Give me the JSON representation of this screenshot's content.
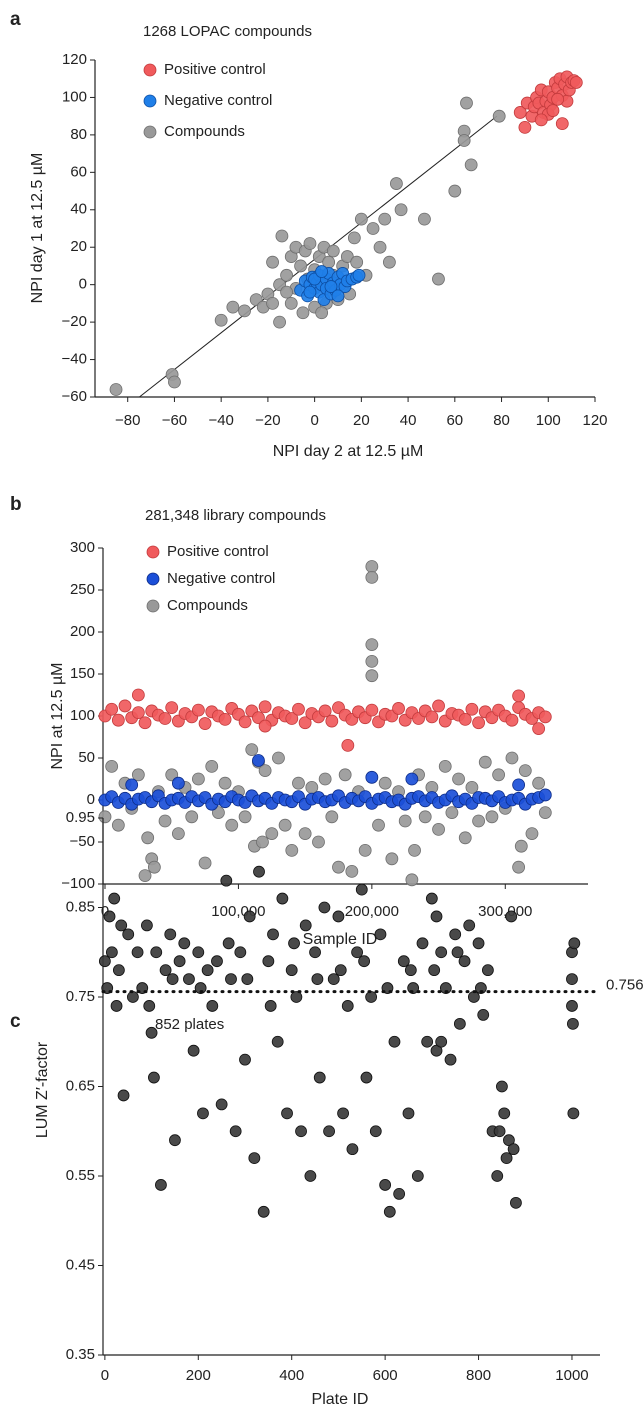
{
  "chart_data": [
    {
      "type": "scatter",
      "panel_label": "a",
      "title": "1268 LOPAC compounds",
      "xlabel": "NPI day 2 at 12.5 µM",
      "ylabel": "NPI day 1 at 12.5 µM",
      "xlim": [
        -94,
        120
      ],
      "ylim": [
        -60,
        120
      ],
      "xticks": [
        {
          "value": -80,
          "label": "−80"
        },
        {
          "value": -60,
          "label": "−60"
        },
        {
          "value": -40,
          "label": "−40"
        },
        {
          "value": -20,
          "label": "−20"
        },
        0,
        20,
        40,
        60,
        80,
        100,
        120
      ],
      "yticks": [
        {
          "value": -60,
          "label": "−60"
        },
        {
          "value": -40,
          "label": "−40"
        },
        {
          "value": -20,
          "label": "−20"
        },
        0,
        20,
        40,
        60,
        80,
        100,
        120
      ],
      "fit_line": {
        "x": [
          -75,
          78
        ],
        "y": [
          -60,
          90
        ]
      },
      "series": [
        {
          "name": "Positive control",
          "color": "#f05a5c",
          "x": [
            88,
            90,
            91,
            93,
            94,
            95,
            96,
            97,
            98,
            99,
            100,
            101,
            102,
            103,
            104,
            105,
            106,
            106,
            107,
            108,
            108,
            109,
            110,
            111,
            112,
            104,
            100,
            97,
            102
          ],
          "values": [
            92,
            84,
            97,
            90,
            95,
            100,
            97,
            104,
            92,
            98,
            103,
            96,
            100,
            108,
            105,
            110,
            86,
            101,
            107,
            111,
            98,
            104,
            108,
            109,
            108,
            99,
            91,
            88,
            93
          ]
        },
        {
          "name": "Negative control",
          "color": "#1f7fe8",
          "x": [
            -6,
            -4,
            -3,
            -2,
            -1,
            0,
            1,
            2,
            2,
            3,
            4,
            5,
            5,
            6,
            7,
            8,
            9,
            10,
            11,
            12,
            13,
            14,
            16,
            18,
            19,
            0,
            -2,
            3,
            7,
            10
          ],
          "values": [
            -3,
            2,
            -6,
            0,
            4,
            -2,
            1,
            5,
            -4,
            0,
            -8,
            3,
            -2,
            6,
            -5,
            1,
            -3,
            4,
            0,
            6,
            -1,
            2,
            3,
            4,
            5,
            3,
            -4,
            7,
            -1,
            -6
          ]
        },
        {
          "name": "Compounds",
          "color": "#999999",
          "x": [
            -85,
            -61,
            -60,
            -40,
            -35,
            -30,
            -25,
            -22,
            -20,
            -18,
            -15,
            -15,
            -14,
            -12,
            -10,
            -10,
            -8,
            -6,
            -5,
            -4,
            -2,
            0,
            0,
            2,
            4,
            5,
            6,
            8,
            10,
            12,
            14,
            15,
            18,
            20,
            22,
            25,
            28,
            30,
            32,
            35,
            37,
            47,
            53,
            60,
            64,
            64,
            65,
            67,
            79,
            17,
            -8,
            -12,
            3,
            8,
            -18,
            -3,
            6
          ],
          "values": [
            -56,
            -48,
            -52,
            -19,
            -12,
            -14,
            -8,
            -12,
            -5,
            -10,
            -20,
            0,
            26,
            5,
            -10,
            15,
            20,
            10,
            -15,
            18,
            22,
            8,
            -12,
            15,
            20,
            -10,
            12,
            18,
            -8,
            10,
            15,
            -5,
            12,
            35,
            5,
            30,
            20,
            35,
            12,
            54,
            40,
            35,
            3,
            50,
            82,
            77,
            97,
            64,
            90,
            25,
            -2,
            -4,
            -15,
            5,
            12,
            3,
            -3
          ]
        }
      ]
    },
    {
      "type": "scatter",
      "panel_label": "b",
      "title": "281,348 library compounds",
      "xlabel": "Sample ID",
      "ylabel": "NPI at 12.5 µM",
      "xlim": [
        -1500,
        362000
      ],
      "ylim": [
        -100,
        300
      ],
      "xticks": [
        0,
        {
          "value": 100000,
          "label": "100,000"
        },
        {
          "value": 200000,
          "label": "200,000"
        },
        {
          "value": 300000,
          "label": "300,000"
        }
      ],
      "yticks": [
        {
          "value": -100,
          "label": "−100"
        },
        {
          "value": -50,
          "label": "−50"
        },
        0,
        50,
        100,
        150,
        200,
        250,
        300
      ],
      "series": [
        {
          "name": "Positive control",
          "color": "#f05a5c",
          "x": [
            0,
            5000,
            10000,
            15000,
            20000,
            25000,
            30000,
            35000,
            40000,
            45000,
            50000,
            55000,
            60000,
            65000,
            70000,
            75000,
            80000,
            85000,
            90000,
            95000,
            100000,
            105000,
            110000,
            115000,
            120000,
            125000,
            130000,
            135000,
            140000,
            145000,
            150000,
            155000,
            160000,
            165000,
            170000,
            175000,
            180000,
            185000,
            190000,
            195000,
            200000,
            205000,
            210000,
            215000,
            220000,
            225000,
            230000,
            235000,
            240000,
            245000,
            250000,
            255000,
            260000,
            265000,
            270000,
            275000,
            280000,
            285000,
            290000,
            295000,
            300000,
            305000,
            310000,
            315000,
            320000,
            325000,
            330000,
            25000,
            310000,
            182000,
            325000,
            120000
          ],
          "values": [
            100,
            108,
            95,
            112,
            98,
            104,
            92,
            106,
            101,
            97,
            110,
            94,
            103,
            99,
            107,
            91,
            105,
            100,
            96,
            109,
            102,
            93,
            106,
            98,
            111,
            95,
            104,
            100,
            97,
            108,
            92,
            103,
            99,
            106,
            94,
            110,
            101,
            96,
            105,
            98,
            107,
            93,
            102,
            100,
            109,
            95,
            104,
            97,
            106,
            99,
            112,
            94,
            103,
            101,
            96,
            108,
            92,
            105,
            98,
            107,
            100,
            95,
            110,
            102,
            97,
            104,
            99,
            125,
            124,
            65,
            85,
            88
          ]
        },
        {
          "name": "Negative control",
          "color": "#1b4fd8",
          "x": [
            0,
            5000,
            10000,
            15000,
            20000,
            25000,
            30000,
            35000,
            40000,
            45000,
            50000,
            55000,
            60000,
            65000,
            70000,
            75000,
            80000,
            85000,
            90000,
            95000,
            100000,
            105000,
            110000,
            115000,
            120000,
            125000,
            130000,
            135000,
            140000,
            145000,
            150000,
            155000,
            160000,
            165000,
            170000,
            175000,
            180000,
            185000,
            190000,
            195000,
            200000,
            205000,
            210000,
            215000,
            220000,
            225000,
            230000,
            235000,
            240000,
            245000,
            250000,
            255000,
            260000,
            265000,
            270000,
            275000,
            280000,
            285000,
            290000,
            295000,
            300000,
            305000,
            310000,
            315000,
            320000,
            325000,
            330000,
            20000,
            55000,
            115000,
            200000,
            230000,
            310000
          ],
          "values": [
            0,
            4,
            -3,
            2,
            -5,
            1,
            3,
            -2,
            5,
            -4,
            0,
            2,
            -3,
            4,
            -1,
            3,
            -5,
            1,
            -2,
            4,
            0,
            -3,
            5,
            -1,
            2,
            -4,
            3,
            0,
            -2,
            4,
            -5,
            1,
            3,
            -2,
            0,
            5,
            -3,
            2,
            -1,
            4,
            -4,
            1,
            3,
            -2,
            0,
            -5,
            2,
            4,
            -1,
            3,
            -3,
            0,
            5,
            -2,
            1,
            -4,
            3,
            2,
            -1,
            4,
            -3,
            0,
            2,
            -5,
            1,
            3,
            6,
            18,
            20,
            47,
            27,
            25,
            18
          ]
        },
        {
          "name": "Compounds",
          "color": "#999999",
          "x": [
            0,
            5000,
            10000,
            15000,
            20000,
            25000,
            30000,
            32000,
            35000,
            37000,
            40000,
            45000,
            50000,
            55000,
            60000,
            65000,
            70000,
            75000,
            80000,
            85000,
            90000,
            95000,
            100000,
            105000,
            110000,
            112000,
            115000,
            118000,
            120000,
            125000,
            130000,
            135000,
            140000,
            145000,
            150000,
            155000,
            160000,
            165000,
            170000,
            175000,
            180000,
            185000,
            190000,
            195000,
            200000,
            200000,
            200000,
            200000,
            200000,
            205000,
            210000,
            215000,
            220000,
            225000,
            230000,
            232000,
            235000,
            240000,
            245000,
            250000,
            255000,
            260000,
            265000,
            270000,
            275000,
            280000,
            285000,
            290000,
            295000,
            300000,
            305000,
            310000,
            312000,
            315000,
            320000,
            325000,
            330000
          ],
          "values": [
            -20,
            40,
            -30,
            20,
            -10,
            30,
            -90,
            -45,
            -70,
            -80,
            10,
            -25,
            30,
            -40,
            15,
            -20,
            25,
            -75,
            40,
            -15,
            20,
            -30,
            10,
            -20,
            60,
            -55,
            45,
            -50,
            35,
            -40,
            50,
            -30,
            -60,
            20,
            -40,
            15,
            -50,
            25,
            -20,
            -80,
            30,
            -85,
            10,
            -60,
            278,
            265,
            185,
            165,
            148,
            -30,
            20,
            -70,
            10,
            -25,
            -95,
            -60,
            30,
            -20,
            15,
            -35,
            40,
            -15,
            25,
            -45,
            15,
            -25,
            45,
            -20,
            30,
            -10,
            50,
            -80,
            -55,
            35,
            -40,
            20,
            -15
          ]
        }
      ]
    },
    {
      "type": "scatter",
      "panel_label": "c",
      "title": "852 plates",
      "xlabel": "Plate ID",
      "ylabel": "LUM Z′-factor",
      "xlim": [
        -4,
        1060
      ],
      "ylim": [
        0.35,
        0.95
      ],
      "xticks": [
        0,
        200,
        400,
        600,
        800,
        1000
      ],
      "yticks": [
        0.35,
        0.45,
        0.55,
        0.65,
        0.75,
        0.85,
        0.95
      ],
      "hline": 0.756,
      "series": [
        {
          "color": "#3a3a3a",
          "x": [
            0,
            10,
            20,
            30,
            40,
            50,
            60,
            70,
            80,
            90,
            100,
            110,
            120,
            130,
            140,
            150,
            160,
            170,
            180,
            190,
            200,
            210,
            220,
            230,
            240,
            250,
            260,
            270,
            280,
            290,
            300,
            310,
            320,
            330,
            340,
            350,
            360,
            370,
            380,
            390,
            400,
            410,
            420,
            430,
            440,
            450,
            460,
            470,
            480,
            490,
            500,
            510,
            520,
            530,
            540,
            550,
            560,
            570,
            580,
            590,
            600,
            610,
            620,
            630,
            640,
            650,
            660,
            670,
            680,
            690,
            700,
            710,
            720,
            730,
            740,
            750,
            760,
            770,
            780,
            790,
            800,
            810,
            820,
            830,
            840,
            850,
            860,
            870,
            880,
            5,
            15,
            25,
            35,
            95,
            105,
            145,
            205,
            265,
            305,
            355,
            405,
            455,
            505,
            555,
            605,
            655,
            705,
            755,
            805,
            845,
            855,
            865,
            875,
            710,
            720,
            1000,
            1005,
            1000,
            1000,
            1002,
            1003
          ],
          "values": [
            0.79,
            0.84,
            0.86,
            0.78,
            0.64,
            0.82,
            0.75,
            0.8,
            0.76,
            0.83,
            0.71,
            0.8,
            0.54,
            0.78,
            0.82,
            0.59,
            0.79,
            0.81,
            0.77,
            0.69,
            0.8,
            0.62,
            0.78,
            0.74,
            0.79,
            0.63,
            0.88,
            0.77,
            0.6,
            0.8,
            0.68,
            0.84,
            0.57,
            0.89,
            0.51,
            0.79,
            0.82,
            0.7,
            0.86,
            0.62,
            0.78,
            0.75,
            0.6,
            0.83,
            0.55,
            0.8,
            0.66,
            0.85,
            0.6,
            0.77,
            0.84,
            0.62,
            0.74,
            0.58,
            0.8,
            0.87,
            0.66,
            0.75,
            0.6,
            0.82,
            0.54,
            0.51,
            0.7,
            0.53,
            0.79,
            0.62,
            0.76,
            0.55,
            0.81,
            0.7,
            0.86,
            0.84,
            0.8,
            0.76,
            0.68,
            0.82,
            0.72,
            0.79,
            0.83,
            0.75,
            0.81,
            0.73,
            0.78,
            0.6,
            0.55,
            0.65,
            0.57,
            0.84,
            0.52,
            0.76,
            0.8,
            0.74,
            0.83,
            0.74,
            0.66,
            0.77,
            0.76,
            0.81,
            0.77,
            0.74,
            0.81,
            0.77,
            0.78,
            0.79,
            0.76,
            0.78,
            0.78,
            0.8,
            0.76,
            0.6,
            0.62,
            0.59,
            0.58,
            0.69,
            0.7,
            0.8,
            0.81,
            0.77,
            0.74,
            0.72,
            0.62
          ]
        }
      ]
    }
  ]
}
